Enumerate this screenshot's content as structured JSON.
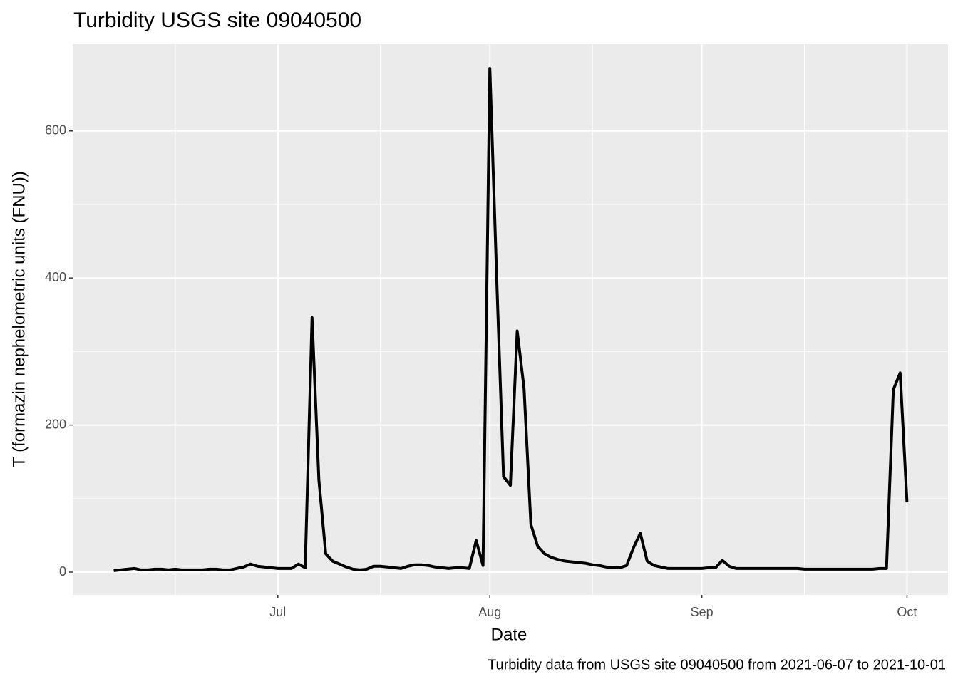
{
  "chart_data": {
    "type": "line",
    "title": "Turbidity USGS site 09040500",
    "xlabel": "Date",
    "ylabel": "T (formazin nephelometric units (FNU))",
    "caption": "Turbidity data from USGS site 09040500 from 2021-06-07 to 2021-10-01",
    "x": [
      "2021-06-07",
      "2021-06-08",
      "2021-06-09",
      "2021-06-10",
      "2021-06-11",
      "2021-06-12",
      "2021-06-13",
      "2021-06-14",
      "2021-06-15",
      "2021-06-16",
      "2021-06-17",
      "2021-06-18",
      "2021-06-19",
      "2021-06-20",
      "2021-06-21",
      "2021-06-22",
      "2021-06-23",
      "2021-06-24",
      "2021-06-25",
      "2021-06-26",
      "2021-06-27",
      "2021-06-28",
      "2021-06-29",
      "2021-06-30",
      "2021-07-01",
      "2021-07-02",
      "2021-07-03",
      "2021-07-04",
      "2021-07-05",
      "2021-07-06",
      "2021-07-07",
      "2021-07-08",
      "2021-07-09",
      "2021-07-10",
      "2021-07-11",
      "2021-07-12",
      "2021-07-13",
      "2021-07-14",
      "2021-07-15",
      "2021-07-16",
      "2021-07-17",
      "2021-07-18",
      "2021-07-19",
      "2021-07-20",
      "2021-07-21",
      "2021-07-22",
      "2021-07-23",
      "2021-07-24",
      "2021-07-25",
      "2021-07-26",
      "2021-07-27",
      "2021-07-28",
      "2021-07-29",
      "2021-07-30",
      "2021-07-31",
      "2021-08-01",
      "2021-08-02",
      "2021-08-03",
      "2021-08-04",
      "2021-08-05",
      "2021-08-06",
      "2021-08-07",
      "2021-08-08",
      "2021-08-09",
      "2021-08-10",
      "2021-08-11",
      "2021-08-12",
      "2021-08-13",
      "2021-08-14",
      "2021-08-15",
      "2021-08-16",
      "2021-08-17",
      "2021-08-18",
      "2021-08-19",
      "2021-08-20",
      "2021-08-21",
      "2021-08-22",
      "2021-08-23",
      "2021-08-24",
      "2021-08-25",
      "2021-08-26",
      "2021-08-27",
      "2021-08-28",
      "2021-08-29",
      "2021-08-30",
      "2021-08-31",
      "2021-09-01",
      "2021-09-02",
      "2021-09-03",
      "2021-09-04",
      "2021-09-05",
      "2021-09-06",
      "2021-09-07",
      "2021-09-08",
      "2021-09-09",
      "2021-09-10",
      "2021-09-11",
      "2021-09-12",
      "2021-09-13",
      "2021-09-14",
      "2021-09-15",
      "2021-09-16",
      "2021-09-17",
      "2021-09-18",
      "2021-09-19",
      "2021-09-20",
      "2021-09-21",
      "2021-09-22",
      "2021-09-23",
      "2021-09-24",
      "2021-09-25",
      "2021-09-26",
      "2021-09-27",
      "2021-09-28",
      "2021-09-29",
      "2021-09-30",
      "2021-10-01"
    ],
    "series": [
      {
        "name": "Turbidity",
        "color": "#000000",
        "values": [
          2,
          3,
          4,
          5,
          3,
          3,
          4,
          4,
          3,
          4,
          3,
          3,
          3,
          3,
          4,
          4,
          3,
          3,
          5,
          7,
          11,
          8,
          7,
          6,
          5,
          5,
          5,
          11,
          6,
          346,
          125,
          25,
          15,
          11,
          7,
          4,
          3,
          4,
          8,
          8,
          7,
          6,
          5,
          8,
          10,
          10,
          9,
          7,
          6,
          5,
          6,
          6,
          5,
          43,
          9,
          685,
          400,
          130,
          118,
          328,
          250,
          65,
          35,
          25,
          20,
          17,
          15,
          14,
          13,
          12,
          10,
          9,
          7,
          6,
          6,
          9,
          33,
          53,
          15,
          9,
          7,
          5,
          5,
          5,
          5,
          5,
          5,
          6,
          6,
          16,
          8,
          5,
          5,
          5,
          5,
          5,
          5,
          5,
          5,
          5,
          5,
          4,
          4,
          4,
          4,
          4,
          4,
          4,
          4,
          4,
          4,
          4,
          5,
          5,
          248,
          271,
          95
        ]
      }
    ],
    "xlim": [
      "2021-06-01",
      "2021-10-07"
    ],
    "xticks": [
      {
        "value": "2021-07-01",
        "label": "Jul"
      },
      {
        "value": "2021-08-01",
        "label": "Aug"
      },
      {
        "value": "2021-09-01",
        "label": "Sep"
      },
      {
        "value": "2021-10-01",
        "label": "Oct"
      }
    ],
    "x_minor_ticks": [
      "2021-06-16",
      "2021-07-16",
      "2021-08-16",
      "2021-09-16"
    ],
    "ylim": [
      -31,
      718
    ],
    "yticks": [
      0,
      200,
      400,
      600
    ],
    "y_minor_ticks": [
      100,
      300,
      500
    ],
    "grid": true
  }
}
